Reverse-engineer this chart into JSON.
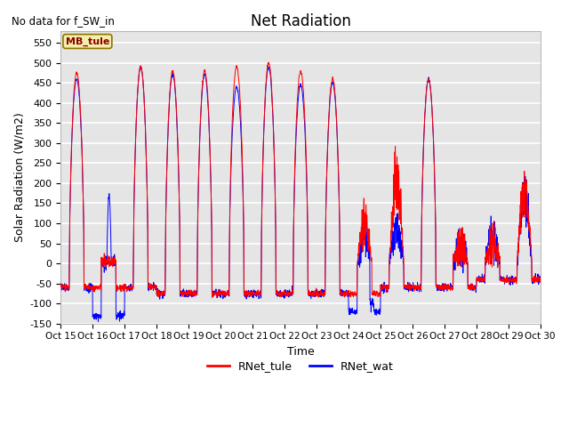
{
  "title": "Net Radiation",
  "subtitle": "No data for f_SW_in",
  "xlabel": "Time",
  "ylabel": "Solar Radiation (W/m2)",
  "ylim": [
    -150,
    580
  ],
  "yticks": [
    -150,
    -100,
    -50,
    0,
    50,
    100,
    150,
    200,
    250,
    300,
    350,
    400,
    450,
    500,
    550
  ],
  "xtick_labels": [
    "Oct 15",
    "Oct 16",
    "Oct 17",
    "Oct 18",
    "Oct 19",
    "Oct 20",
    "Oct 21",
    "Oct 22",
    "Oct 23",
    "Oct 24",
    "Oct 25",
    "Oct 26",
    "Oct 27",
    "Oct 28",
    "Oct 29",
    "Oct 30"
  ],
  "legend_entries": [
    "RNet_tule",
    "RNet_wat"
  ],
  "legend_colors": [
    "red",
    "blue"
  ],
  "station_label": "MB_tule",
  "background_color": "#e5e5e5",
  "line_color_tule": "red",
  "line_color_wat": "blue",
  "grid_color": "white",
  "figsize": [
    6.4,
    4.8
  ],
  "dpi": 100
}
